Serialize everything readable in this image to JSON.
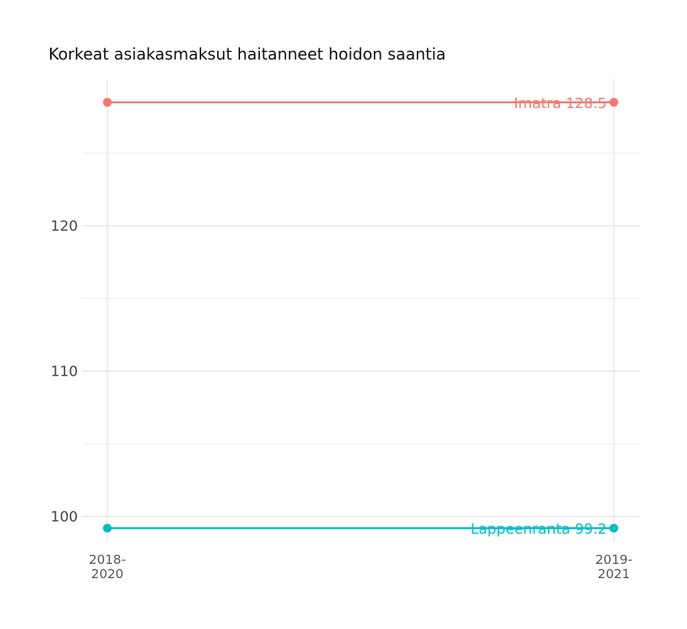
{
  "chart_data": {
    "type": "line",
    "title": "Korkeat asiakasmaksut haitanneet hoidon saantia",
    "xlabel": "",
    "ylabel": "",
    "categories": [
      [
        "2018-",
        "2020"
      ],
      [
        "2019-",
        "2021"
      ]
    ],
    "y_ticks": [
      100,
      110,
      120
    ],
    "ylim": [
      98.2,
      129.5
    ],
    "grid": true,
    "legend": "none",
    "series": [
      {
        "name": "Imatra",
        "values": [
          128.5,
          128.5
        ],
        "color": "#F8766D",
        "end_label": "Imatra 128.5"
      },
      {
        "name": "Lappeenranta",
        "values": [
          99.2,
          99.2
        ],
        "color": "#00BFC4",
        "end_label": "Lappeenranta 99.2"
      }
    ]
  }
}
